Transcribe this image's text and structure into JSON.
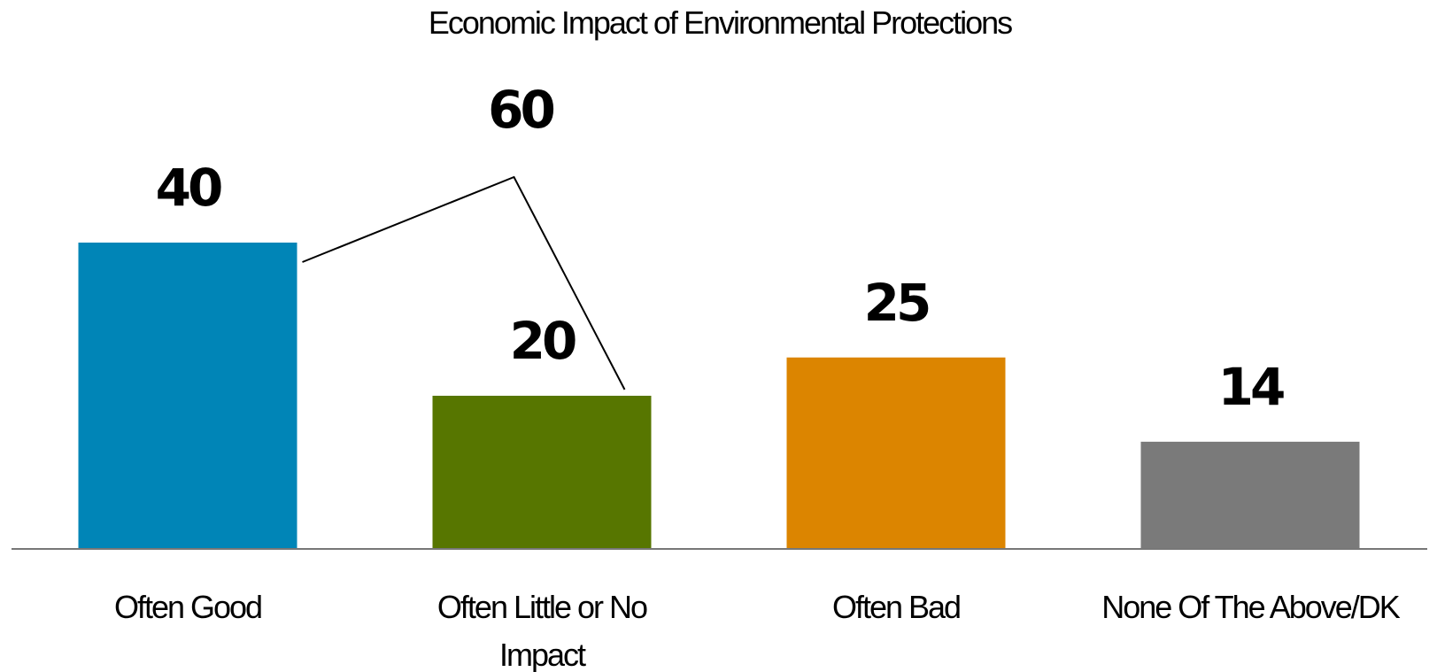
{
  "chart_data": {
    "type": "bar",
    "title": "Economic Impact of Environmental Protections",
    "categories": [
      [
        "Often Good"
      ],
      [
        "Often Little or No",
        "Impact"
      ],
      [
        "Often Bad"
      ],
      [
        "None Of The Above/DK"
      ]
    ],
    "values": [
      40,
      20,
      25,
      14
    ],
    "colors": [
      "#0085B7",
      "#577600",
      "#DC8500",
      "#7A7A7A"
    ],
    "ylim": [
      0,
      72
    ],
    "grid": false,
    "legend": "none",
    "bracket": {
      "label": "60",
      "spans_categories": [
        0,
        1
      ],
      "line_color": "#000000"
    }
  }
}
